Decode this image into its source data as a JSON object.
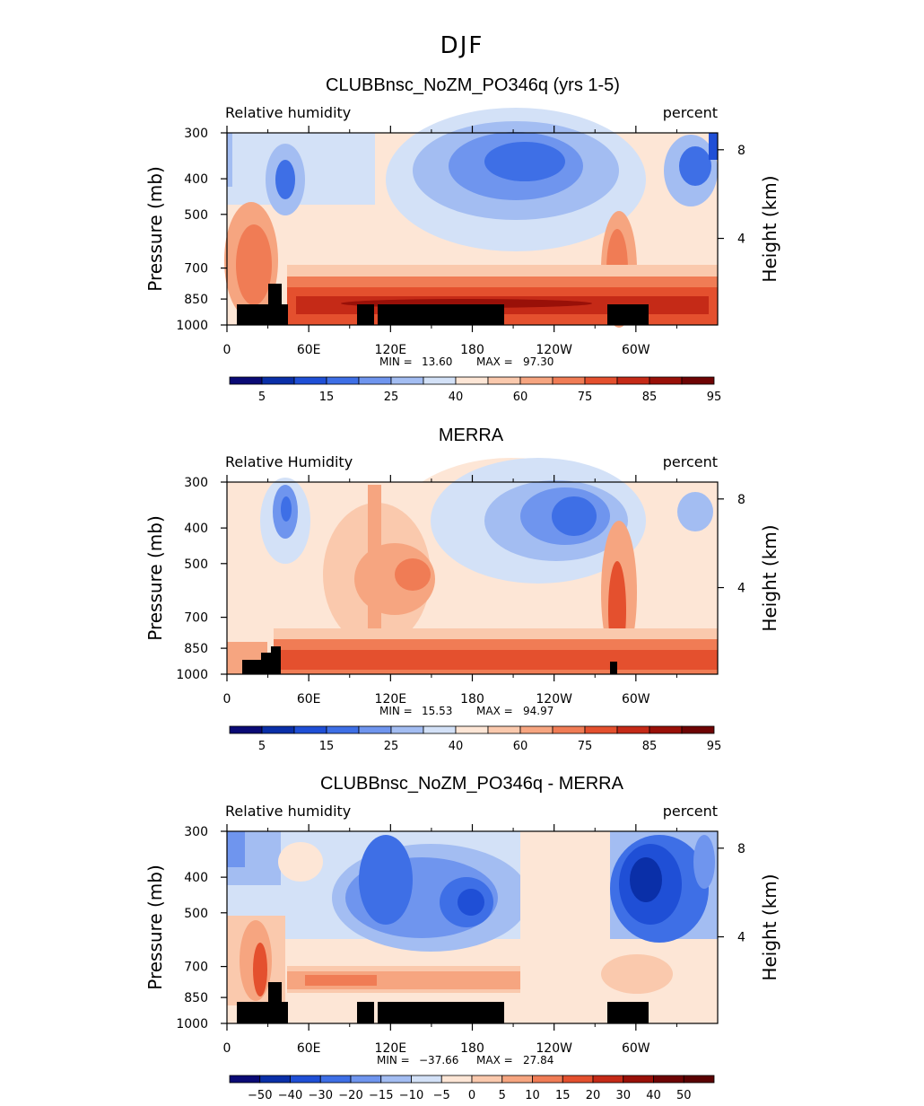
{
  "figure_title": "DJF",
  "colorbar_colors": [
    "#0a0a75",
    "#0a2fa8",
    "#1f4fd6",
    "#3e6fe6",
    "#6f95ee",
    "#a3bdf2",
    "#d3e1f7",
    "#fde6d6",
    "#fac9ad",
    "#f6a580",
    "#f07c55",
    "#e4502e",
    "#c52a17",
    "#991008",
    "#6e0404"
  ],
  "colorbar_colors_diff": [
    "#0a0a75",
    "#0a2fa8",
    "#1f4fd6",
    "#3e6fe6",
    "#6f95ee",
    "#a3bdf2",
    "#d3e1f7",
    "#fde6d6",
    "#fac9ad",
    "#f6a580",
    "#f07c55",
    "#e4502e",
    "#c52a17",
    "#991008",
    "#6e0404",
    "#5a0202"
  ],
  "chart_data": [
    {
      "type": "heatmap",
      "title": "CLUBBnsc_NoZM_PO346q (yrs 1-5)",
      "left_label": "Relative humidity",
      "right_label": "percent",
      "ylabel": "Pressure (mb)",
      "y2label": "Height (km)",
      "y_ticks": [
        "300",
        "400",
        "500",
        "700",
        "850",
        "1000"
      ],
      "y2_ticks": [
        "8",
        "4"
      ],
      "x_ticks": [
        "0",
        "60E",
        "120E",
        "180",
        "120W",
        "60W"
      ],
      "min_label": "MIN =",
      "min_value": "13.60",
      "max_label": "MAX =",
      "max_value": "97.30",
      "colorbar_labels": [
        "5",
        "15",
        "25",
        "40",
        "60",
        "75",
        "85",
        "95"
      ]
    },
    {
      "type": "heatmap",
      "title": "MERRA",
      "left_label": "Relative Humidity",
      "right_label": "percent",
      "ylabel": "Pressure (mb)",
      "y2label": "Height (km)",
      "y_ticks": [
        "300",
        "400",
        "500",
        "700",
        "850",
        "1000"
      ],
      "y2_ticks": [
        "8",
        "4"
      ],
      "x_ticks": [
        "0",
        "60E",
        "120E",
        "180",
        "120W",
        "60W"
      ],
      "min_label": "MIN =",
      "min_value": "15.53",
      "max_label": "MAX =",
      "max_value": "94.97",
      "colorbar_labels": [
        "5",
        "15",
        "25",
        "40",
        "60",
        "75",
        "85",
        "95"
      ]
    },
    {
      "type": "heatmap",
      "title": "CLUBBnsc_NoZM_PO346q - MERRA",
      "left_label": "Relative humidity",
      "right_label": "percent",
      "ylabel": "Pressure (mb)",
      "y2label": "Height (km)",
      "y_ticks": [
        "300",
        "400",
        "500",
        "700",
        "850",
        "1000"
      ],
      "y2_ticks": [
        "8",
        "4"
      ],
      "x_ticks": [
        "0",
        "60E",
        "120E",
        "180",
        "120W",
        "60W"
      ],
      "min_label": "MIN =",
      "min_value": "−37.66",
      "max_label": "MAX =",
      "max_value": "27.84",
      "colorbar_labels": [
        "−50",
        "−40",
        "−30",
        "−20",
        "−15",
        "−10",
        "−5",
        "0",
        "5",
        "10",
        "15",
        "20",
        "30",
        "40",
        "50"
      ]
    }
  ]
}
